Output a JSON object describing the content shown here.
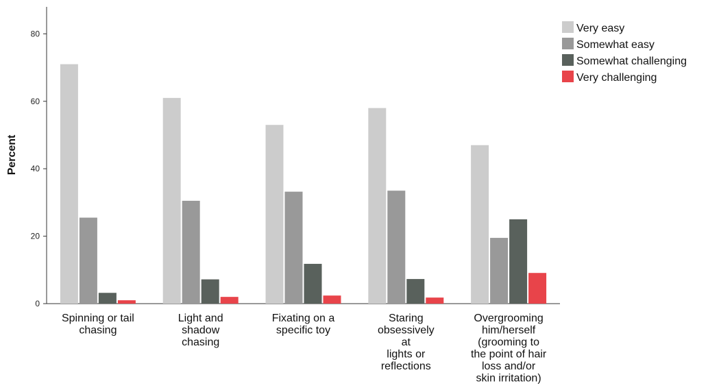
{
  "chart_data": {
    "type": "bar",
    "title": "",
    "xlabel": "",
    "ylabel": "Percent",
    "ylim": [
      0,
      88
    ],
    "yticks": [
      0,
      20,
      40,
      60,
      80
    ],
    "grid": false,
    "legend_position": "top-right",
    "categories": [
      [
        "Spinning or tail",
        "chasing"
      ],
      [
        "Light and",
        "shadow",
        "chasing"
      ],
      [
        "Fixating on a",
        "specific toy"
      ],
      [
        "Staring",
        "obsessively",
        "at",
        "lights or",
        "reflections"
      ],
      [
        "Overgrooming",
        "him/herself",
        "(grooming to",
        "the point of hair",
        "loss and/or",
        "skin irritation)"
      ]
    ],
    "series": [
      {
        "name": "Very easy",
        "color": "#cccccc",
        "values": [
          71,
          61,
          53,
          58,
          47
        ]
      },
      {
        "name": "Somewhat easy",
        "color": "#999999",
        "values": [
          25.5,
          30.5,
          33.2,
          33.5,
          19.5
        ]
      },
      {
        "name": "Somewhat challenging",
        "color": "#59615c",
        "values": [
          3.2,
          7.2,
          11.8,
          7.3,
          25
        ]
      },
      {
        "name": "Very challenging",
        "color": "#e8444a",
        "values": [
          1,
          2,
          2.4,
          1.8,
          9.1
        ]
      }
    ]
  }
}
